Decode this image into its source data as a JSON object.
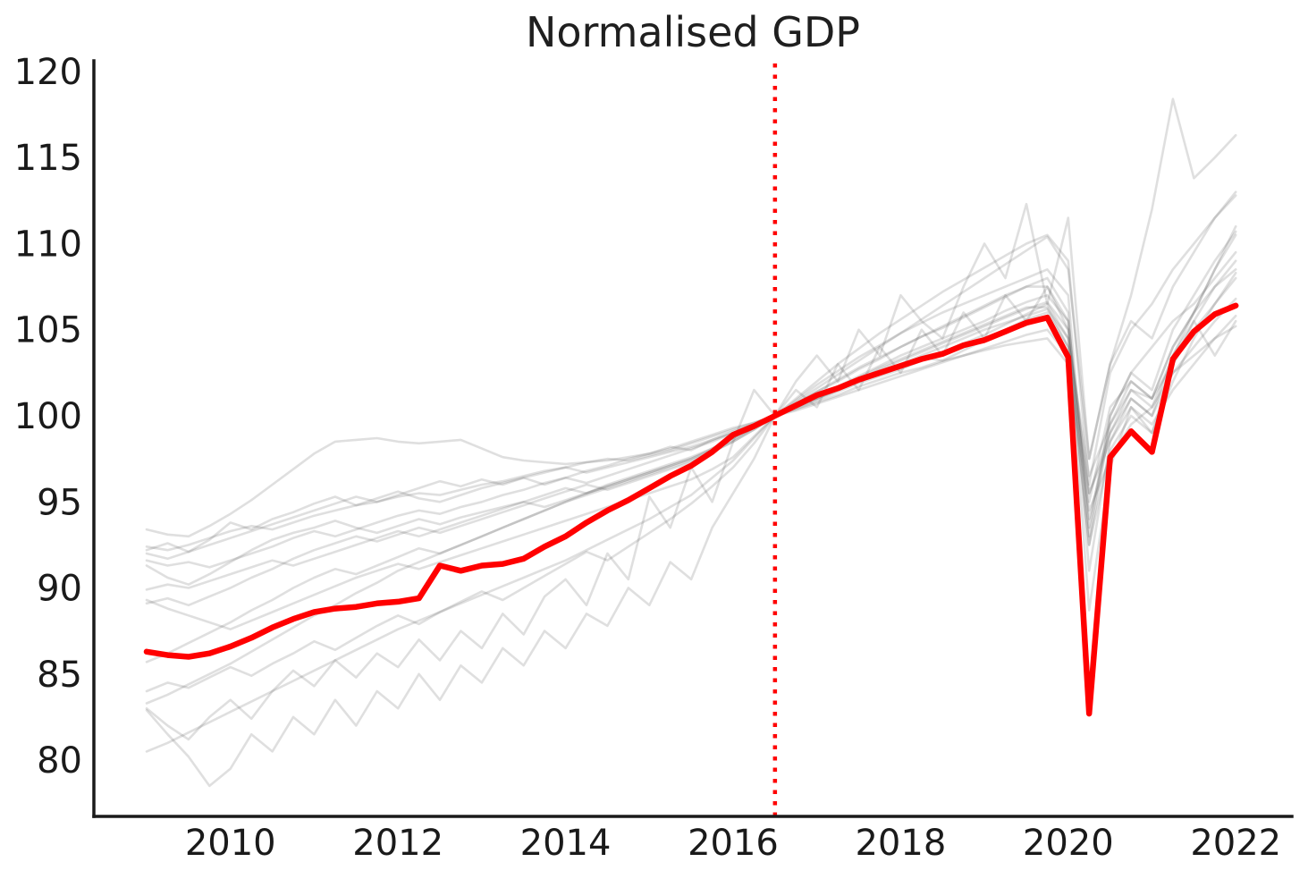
{
  "chart_data": {
    "type": "line",
    "title": "Normalised GDP",
    "grid": false,
    "legend": false,
    "x_axis": {
      "ticks": [
        2010,
        2012,
        2014,
        2016,
        2018,
        2020,
        2022
      ],
      "range": [
        2008.37,
        2022.67
      ]
    },
    "y_axis": {
      "ticks": [
        80,
        85,
        90,
        95,
        100,
        105,
        110,
        115,
        120
      ],
      "range": [
        76.73,
        120.62
      ]
    },
    "x_start": 2009.0,
    "x_step": 0.25,
    "annotation_vline": {
      "x": 2016.5,
      "style": "dotted",
      "color": "#ff0000",
      "meaning": "normalisation point where series = 100"
    },
    "colors": {
      "highlight_line": "#ff0000",
      "background_line": "rgba(80,80,80,0.18)",
      "axis": "#1a1a1a",
      "text": "#1a1a1a"
    },
    "highlight_series": {
      "color": "#ff0000",
      "values": [
        86.3,
        86.1,
        86.0,
        86.2,
        86.6,
        87.1,
        87.7,
        88.2,
        88.6,
        88.8,
        88.9,
        89.1,
        89.2,
        89.4,
        91.3,
        91.0,
        91.3,
        91.4,
        91.7,
        92.4,
        93.0,
        93.8,
        94.5,
        95.1,
        95.8,
        96.5,
        97.1,
        97.9,
        98.9,
        99.4,
        100.0,
        100.6,
        101.2,
        101.6,
        102.1,
        102.5,
        102.9,
        103.3,
        103.6,
        104.1,
        104.4,
        104.9,
        105.4,
        105.7,
        103.4,
        82.7,
        97.6,
        99.1,
        97.9,
        103.3,
        104.9,
        105.9,
        106.4
      ]
    },
    "background_series": [
      [
        93.4,
        93.1,
        93.0,
        93.6,
        94.3,
        95.1,
        96.0,
        96.9,
        97.8,
        98.5,
        98.6,
        98.7,
        98.5,
        98.4,
        98.5,
        98.6,
        98.1,
        97.6,
        97.4,
        97.3,
        97.2,
        97.3,
        97.4,
        97.6,
        97.8,
        98.1,
        98.5,
        98.9,
        99.3,
        99.6,
        100.0,
        100.4,
        100.8,
        101.2,
        101.7,
        102.1,
        102.5,
        102.8,
        103.2,
        103.5,
        103.8,
        104.1,
        104.3,
        104.5,
        103.0,
        94.5,
        97.5,
        99.5,
        100.5,
        102.5,
        103.5,
        104.5,
        105.2
      ],
      [
        92.4,
        92.2,
        92.5,
        92.9,
        93.3,
        93.6,
        93.4,
        93.8,
        94.2,
        94.5,
        94.8,
        95.0,
        95.3,
        95.5,
        95.4,
        95.7,
        96.0,
        96.2,
        96.5,
        96.8,
        97.0,
        97.3,
        97.5,
        97.4,
        97.7,
        98.0,
        98.4,
        98.8,
        99.2,
        99.6,
        100.0,
        100.5,
        101.1,
        101.7,
        102.3,
        102.9,
        103.5,
        104.0,
        104.5,
        105.0,
        105.5,
        106.1,
        106.6,
        107.0,
        105.5,
        95.0,
        100.5,
        102.0,
        101.0,
        104.0,
        106.0,
        108.5,
        110.5
      ],
      [
        92.2,
        92.6,
        92.1,
        92.8,
        93.8,
        93.4,
        94.0,
        94.4,
        94.9,
        95.3,
        94.8,
        95.2,
        95.6,
        95.2,
        95.0,
        95.4,
        95.8,
        96.1,
        96.4,
        96.0,
        96.4,
        96.8,
        97.1,
        97.5,
        97.8,
        98.2,
        98.0,
        98.6,
        99.1,
        99.5,
        100.0,
        100.6,
        101.0,
        101.5,
        102.0,
        102.4,
        103.0,
        103.4,
        103.2,
        103.8,
        104.4,
        105.0,
        105.6,
        106.0,
        104.0,
        92.5,
        98.0,
        100.0,
        99.0,
        102.0,
        104.5,
        106.5,
        108.3
      ],
      [
        91.6,
        91.3,
        91.5,
        91.2,
        91.6,
        92.0,
        92.4,
        92.9,
        93.3,
        93.0,
        93.4,
        93.8,
        94.2,
        94.5,
        94.3,
        94.7,
        95.0,
        95.4,
        95.7,
        96.1,
        96.4,
        96.1,
        96.5,
        96.9,
        97.3,
        97.7,
        98.1,
        98.5,
        99.0,
        99.5,
        100.0,
        100.4,
        100.9,
        101.4,
        101.9,
        102.3,
        102.7,
        103.2,
        103.7,
        104.2,
        104.7,
        105.3,
        105.9,
        106.5,
        104.5,
        96.5,
        99.5,
        101.5,
        101.0,
        103.0,
        105.0,
        106.5,
        108.0
      ],
      [
        91.3,
        90.6,
        90.2,
        90.8,
        91.5,
        92.2,
        92.8,
        93.2,
        93.5,
        93.9,
        93.5,
        93.2,
        93.6,
        94.0,
        93.7,
        94.1,
        94.4,
        94.7,
        95.0,
        94.7,
        95.1,
        95.5,
        95.9,
        96.3,
        96.7,
        97.1,
        97.5,
        98.1,
        98.7,
        99.4,
        100.0,
        100.7,
        101.4,
        102.0,
        102.7,
        103.3,
        104.0,
        104.6,
        105.1,
        105.7,
        106.3,
        106.9,
        107.5,
        108.0,
        106.0,
        91.0,
        98.5,
        101.0,
        100.0,
        103.5,
        106.0,
        108.5,
        111.0
      ],
      [
        89.9,
        90.2,
        90.0,
        90.4,
        90.8,
        91.2,
        91.6,
        91.3,
        91.7,
        92.1,
        92.5,
        92.9,
        93.3,
        93.0,
        93.4,
        93.8,
        94.2,
        94.6,
        95.0,
        95.4,
        95.8,
        95.5,
        95.9,
        96.3,
        96.7,
        97.1,
        97.5,
        98.0,
        98.6,
        99.3,
        100.0,
        100.5,
        101.0,
        101.6,
        102.1,
        102.7,
        103.2,
        103.7,
        104.2,
        104.7,
        105.2,
        105.7,
        106.2,
        106.6,
        105.0,
        94.0,
        99.0,
        101.5,
        100.5,
        103.5,
        105.5,
        107.5,
        109.0
      ],
      [
        89.1,
        89.4,
        89.0,
        89.5,
        90.0,
        90.6,
        91.1,
        91.7,
        92.2,
        92.6,
        93.0,
        92.7,
        93.1,
        93.5,
        93.2,
        93.6,
        94.0,
        94.4,
        94.8,
        95.2,
        95.6,
        96.0,
        95.7,
        96.1,
        96.5,
        96.9,
        97.3,
        97.9,
        98.5,
        99.2,
        100.0,
        100.6,
        101.1,
        101.7,
        102.2,
        102.8,
        103.3,
        103.8,
        104.3,
        104.8,
        105.3,
        105.8,
        106.3,
        106.3,
        104.0,
        92.5,
        99.5,
        102.0,
        101.0,
        104.0,
        106.0,
        107.5,
        108.5
      ],
      [
        85.7,
        86.2,
        86.8,
        87.4,
        88.0,
        88.7,
        89.3,
        90.0,
        90.6,
        91.1,
        90.8,
        91.3,
        91.8,
        92.3,
        92.0,
        92.5,
        93.0,
        93.5,
        94.0,
        94.5,
        95.0,
        95.4,
        95.8,
        96.2,
        96.6,
        97.0,
        97.4,
        97.9,
        98.5,
        99.2,
        100.0,
        100.7,
        101.4,
        102.1,
        102.8,
        103.4,
        104.0,
        104.6,
        105.2,
        105.8,
        106.4,
        107.0,
        107.5,
        107.5,
        105.5,
        93.5,
        100.0,
        102.5,
        101.5,
        105.0,
        107.0,
        109.0,
        110.7
      ],
      [
        83.3,
        83.8,
        84.4,
        85.0,
        85.6,
        86.3,
        87.0,
        87.7,
        88.4,
        89.0,
        89.7,
        90.3,
        91.0,
        91.5,
        92.0,
        92.5,
        93.0,
        93.5,
        94.0,
        94.5,
        95.0,
        95.5,
        96.0,
        96.4,
        96.8,
        97.2,
        97.6,
        98.1,
        98.7,
        99.3,
        100.0,
        100.8,
        101.6,
        102.4,
        103.2,
        104.0,
        104.8,
        105.6,
        106.4,
        107.2,
        108.0,
        108.8,
        109.6,
        110.4,
        108.5,
        97.5,
        103.0,
        105.5,
        104.5,
        107.5,
        109.5,
        111.5,
        113.0
      ],
      [
        83.0,
        82.0,
        81.2,
        82.5,
        83.5,
        82.4,
        84.0,
        85.2,
        84.3,
        85.8,
        84.8,
        86.2,
        85.4,
        87.0,
        85.8,
        87.5,
        86.5,
        88.5,
        87.3,
        89.5,
        90.5,
        89.0,
        92.0,
        90.5,
        95.3,
        93.5,
        97.0,
        95.0,
        98.5,
        101.5,
        100.0,
        102.0,
        103.5,
        102.0,
        105.0,
        103.5,
        107.0,
        105.5,
        104.5,
        107.5,
        110.0,
        108.0,
        112.3,
        106.5,
        111.5,
        97.5,
        103.0,
        107.0,
        112.0,
        118.4,
        113.8,
        115.0,
        116.3
      ],
      [
        80.5,
        81.0,
        81.6,
        82.2,
        82.8,
        83.4,
        84.0,
        84.6,
        85.2,
        85.8,
        86.4,
        87.0,
        87.6,
        88.1,
        88.6,
        89.1,
        89.6,
        90.1,
        90.6,
        91.1,
        91.6,
        92.2,
        92.8,
        93.4,
        94.0,
        94.7,
        95.4,
        96.4,
        97.4,
        98.7,
        100.0,
        100.9,
        101.8,
        102.6,
        103.4,
        104.1,
        104.8,
        105.4,
        106.0,
        106.5,
        107.0,
        107.5,
        108.0,
        108.5,
        107.0,
        93.0,
        100.0,
        102.5,
        104.0,
        105.5,
        106.5,
        108.0,
        109.5
      ],
      [
        82.9,
        81.5,
        80.2,
        78.5,
        79.5,
        81.5,
        80.5,
        82.5,
        81.5,
        83.5,
        82.0,
        84.0,
        83.0,
        85.0,
        83.5,
        85.5,
        84.5,
        86.5,
        85.5,
        87.5,
        86.5,
        88.5,
        87.8,
        90.0,
        89.0,
        91.5,
        90.5,
        93.5,
        95.5,
        97.5,
        100.0,
        101.5,
        100.5,
        103.0,
        101.5,
        104.0,
        102.5,
        105.0,
        103.5,
        106.0,
        104.5,
        107.0,
        105.5,
        107.5,
        105.0,
        88.7,
        97.0,
        100.5,
        99.0,
        103.0,
        105.5,
        103.5,
        105.5
      ],
      [
        92.0,
        91.7,
        92.1,
        92.5,
        92.9,
        93.3,
        93.7,
        94.1,
        94.5,
        94.9,
        95.3,
        95.0,
        95.4,
        95.8,
        96.2,
        95.9,
        96.3,
        96.0,
        96.4,
        96.7,
        97.0,
        96.7,
        97.0,
        97.3,
        97.6,
        97.9,
        98.2,
        98.6,
        99.0,
        99.5,
        100.0,
        100.3,
        100.7,
        101.1,
        101.5,
        101.9,
        102.3,
        102.7,
        103.1,
        103.5,
        103.9,
        104.3,
        104.7,
        105.0,
        103.5,
        95.5,
        98.5,
        100.5,
        99.5,
        101.5,
        103.0,
        104.5,
        105.8
      ],
      [
        89.3,
        88.8,
        88.4,
        88.0,
        87.6,
        88.1,
        88.6,
        89.1,
        89.6,
        90.1,
        90.6,
        91.0,
        91.4,
        91.1,
        91.5,
        91.9,
        92.3,
        92.7,
        93.1,
        93.5,
        93.9,
        94.3,
        94.7,
        95.1,
        95.5,
        95.9,
        96.3,
        96.9,
        97.6,
        98.8,
        100.0,
        100.5,
        101.0,
        101.5,
        102.0,
        102.5,
        103.0,
        103.5,
        104.0,
        104.5,
        105.0,
        105.4,
        105.8,
        106.2,
        104.5,
        95.5,
        99.0,
        101.0,
        100.0,
        102.5,
        104.0,
        105.5,
        106.8
      ],
      [
        84.0,
        84.5,
        84.2,
        84.8,
        85.4,
        84.9,
        85.6,
        86.2,
        86.9,
        86.4,
        87.1,
        87.8,
        88.4,
        87.9,
        88.6,
        89.2,
        89.8,
        89.3,
        90.0,
        90.7,
        91.4,
        92.1,
        91.6,
        92.4,
        93.2,
        94.0,
        94.9,
        95.9,
        97.0,
        98.4,
        100.0,
        101.0,
        102.0,
        103.0,
        103.9,
        104.8,
        105.6,
        106.4,
        107.2,
        107.9,
        108.6,
        109.3,
        110.0,
        110.5,
        109.0,
        96.0,
        102.5,
        105.0,
        106.5,
        108.5,
        110.0,
        111.5,
        112.8
      ]
    ]
  }
}
